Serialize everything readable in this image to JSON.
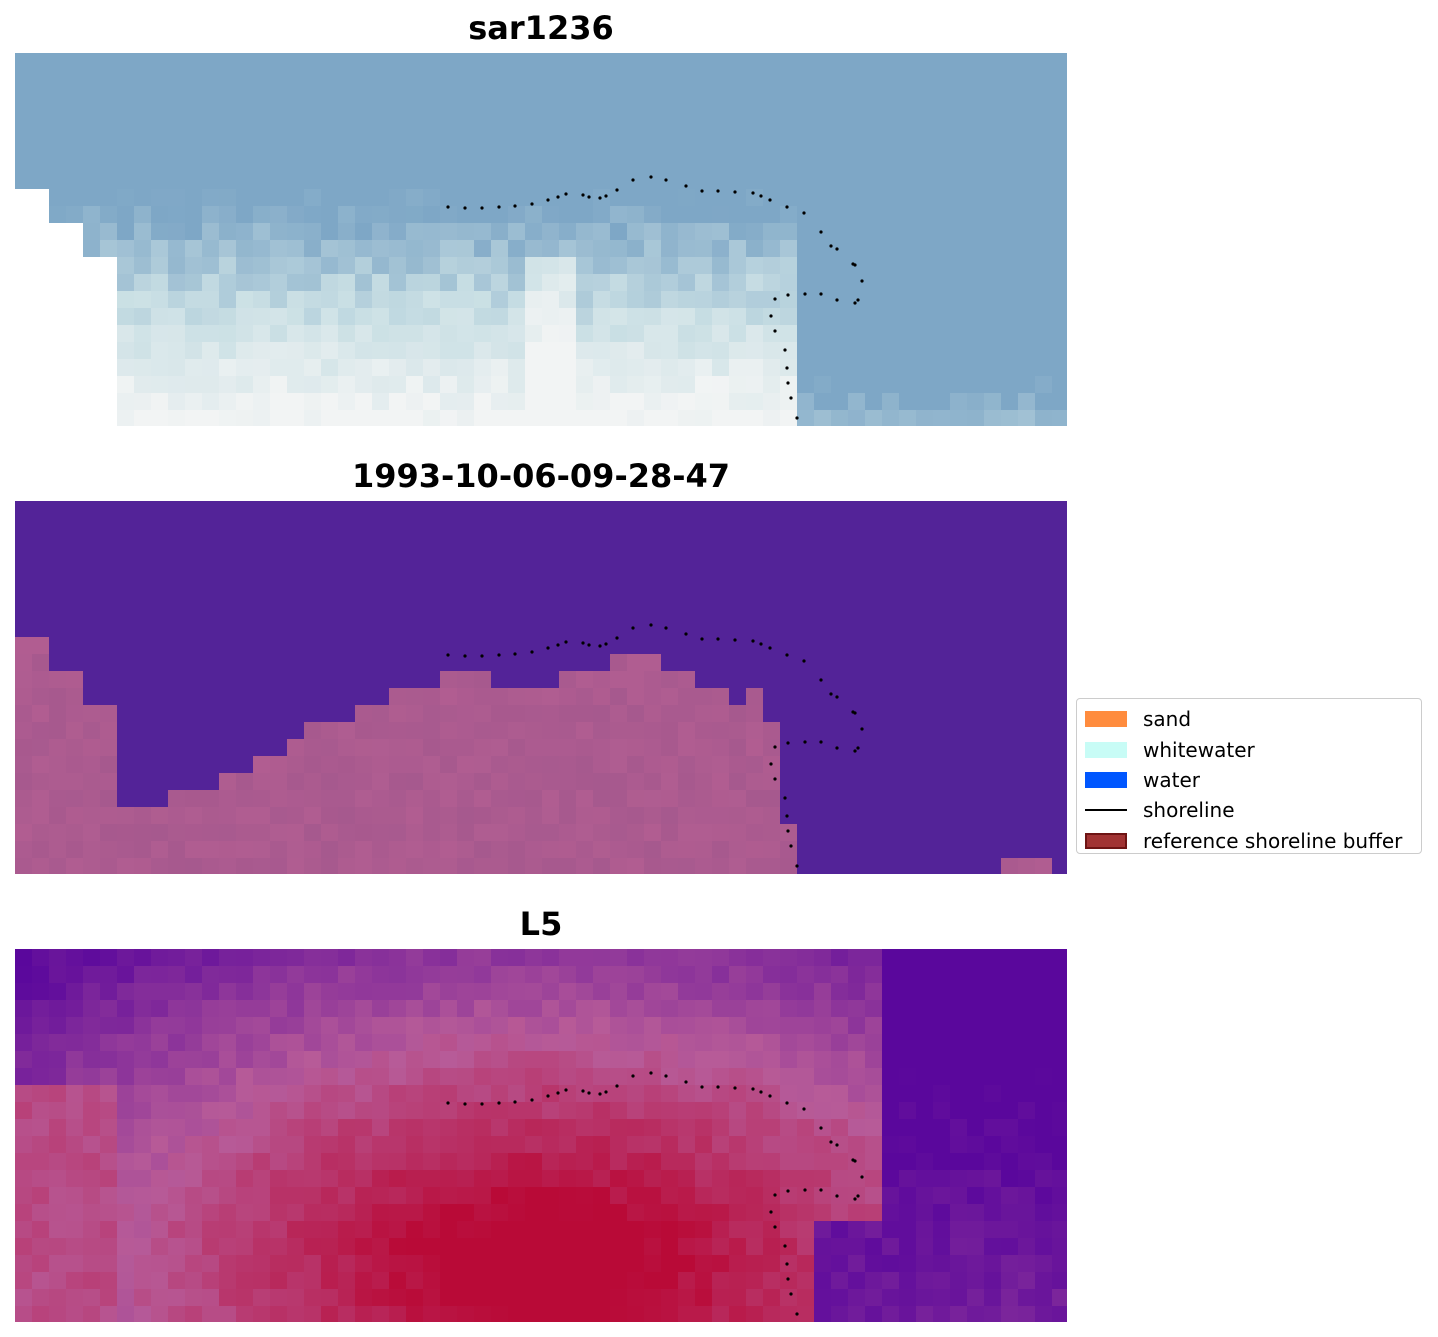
{
  "chart_data": [
    {
      "type": "heatmap",
      "title": "sar1236",
      "image": "RGB satellite image",
      "colors": {
        "water": "#7ea7c6",
        "light": "#c9dfe4",
        "bright": "#f2f4f4",
        "nodata": "#ffffff"
      }
    },
    {
      "type": "heatmap",
      "title": "1993-10-06-09-28-47",
      "image": "classified image",
      "colors": {
        "water": "#532398",
        "land": "#a65a8e"
      }
    },
    {
      "type": "heatmap",
      "title": "L5",
      "image": "water index image",
      "colors": {
        "low": "#5a079c",
        "mid": "#b75b98",
        "high": "#b90a37"
      }
    }
  ],
  "legend": {
    "entries": [
      {
        "label": "sand",
        "kind": "patch",
        "color": "#ff8c3e"
      },
      {
        "label": "whitewater",
        "kind": "patch",
        "color": "#c8fcf6"
      },
      {
        "label": "water",
        "kind": "patch",
        "color": "#0057ff"
      },
      {
        "label": "shoreline",
        "kind": "line",
        "color": "#000000"
      },
      {
        "label": "reference shoreline buffer",
        "kind": "patch",
        "color": "#a13333"
      }
    ]
  }
}
